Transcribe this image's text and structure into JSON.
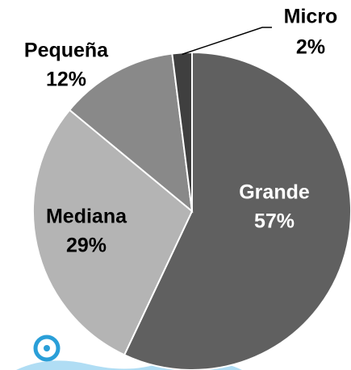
{
  "chart_data": {
    "type": "pie",
    "categories": [
      "Grande",
      "Mediana",
      "Pequeña",
      "Micro"
    ],
    "values": [
      57,
      29,
      12,
      2
    ],
    "value_labels": [
      "57%",
      "29%",
      "12%",
      "2%"
    ],
    "colors": [
      "#606060",
      "#b4b4b4",
      "#898989",
      "#3f3f3f"
    ]
  }
}
